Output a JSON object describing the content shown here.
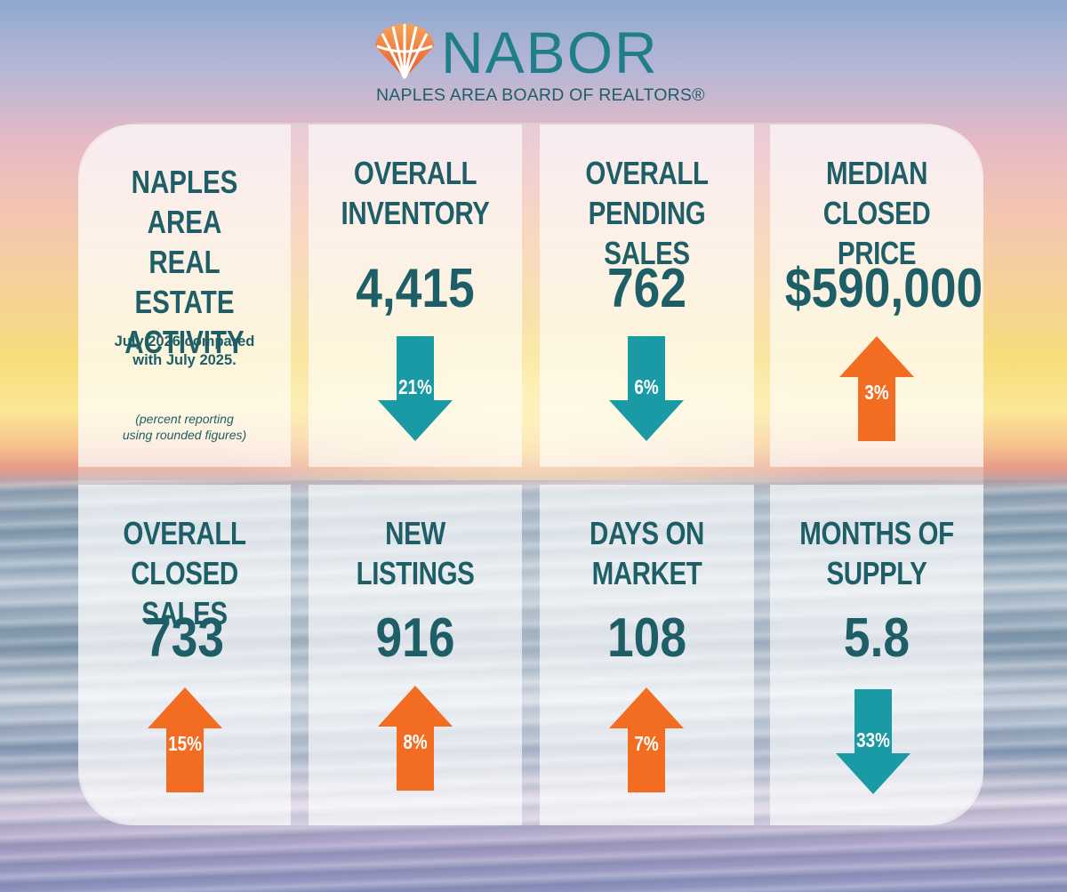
{
  "brand": {
    "name": "NABOR",
    "subtitle": "NAPLES AREA BOARD OF REALTORS®"
  },
  "intro": {
    "title_lines": [
      "NAPLES",
      "AREA",
      "REAL ESTATE",
      "ACTIVITY"
    ],
    "subtitle_lines": [
      "July 2026 compared",
      "with July 2025."
    ],
    "note_lines": [
      "(percent reporting",
      "using rounded figures)"
    ]
  },
  "colors": {
    "teal_text": "#1e5f67",
    "arrow_down": "#1a9aa5",
    "arrow_up": "#f26d21"
  },
  "metrics": [
    {
      "title_lines": [
        "OVERALL",
        "INVENTORY"
      ],
      "value": "4,415",
      "direction": "down",
      "change": "21%"
    },
    {
      "title_lines": [
        "OVERALL",
        "PENDING SALES"
      ],
      "value": "762",
      "direction": "down",
      "change": "6%"
    },
    {
      "title_lines": [
        "MEDIAN",
        "CLOSED PRICE"
      ],
      "value": "$590,000",
      "direction": "up",
      "change": "3%"
    },
    {
      "title_lines": [
        "OVERALL",
        "CLOSED SALES"
      ],
      "value": "733",
      "direction": "up",
      "change": "15%"
    },
    {
      "title_lines": [
        "NEW",
        "LISTINGS"
      ],
      "value": "916",
      "direction": "up",
      "change": "8%"
    },
    {
      "title_lines": [
        "DAYS ON",
        "MARKET"
      ],
      "value": "108",
      "direction": "up",
      "change": "7%"
    },
    {
      "title_lines": [
        "MONTHS OF",
        "SUPPLY"
      ],
      "value": "5.8",
      "direction": "down",
      "change": "33%"
    }
  ]
}
